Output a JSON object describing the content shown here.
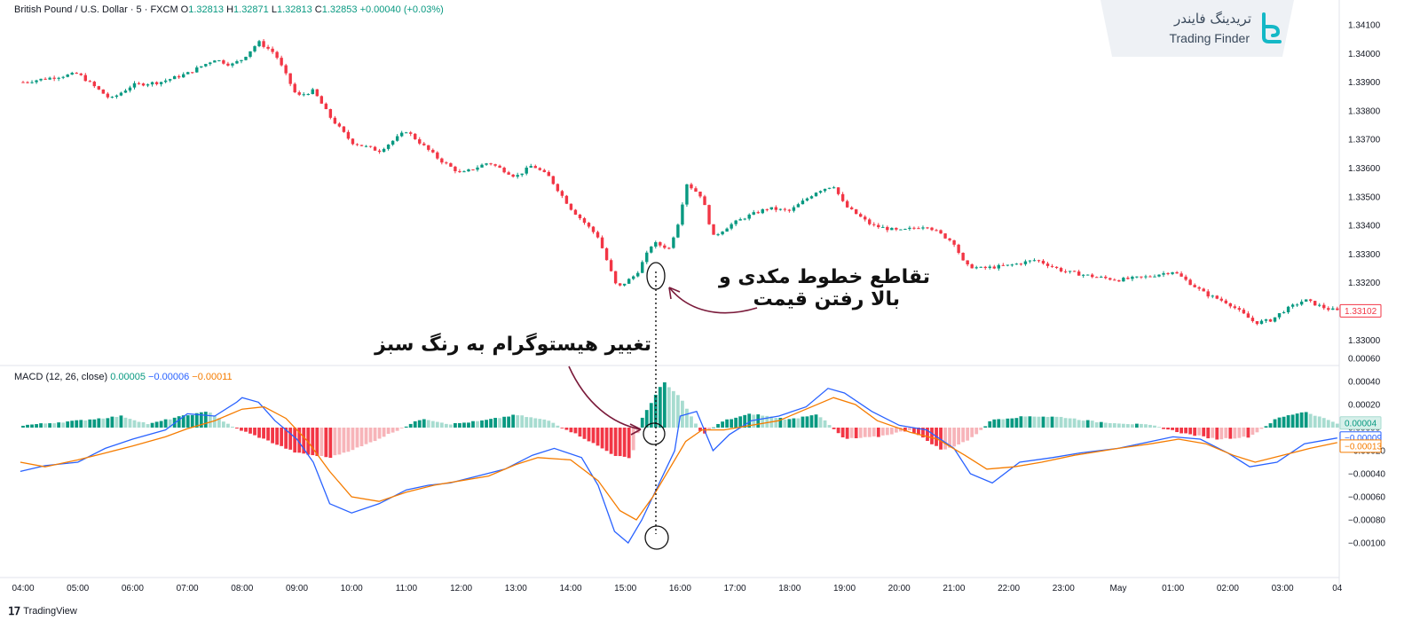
{
  "header": {
    "symbol": "British Pound / U.S. Dollar · 5 · FXCM",
    "ohlc": {
      "o": "1.32813",
      "h": "1.32871",
      "l": "1.32813",
      "c": "1.32853",
      "change": "+0.00040 (+0.03%)"
    }
  },
  "brand": {
    "name_fa": "تریدینگ فایندر",
    "name_en": "Trading Finder"
  },
  "macd_legend": {
    "label": "MACD (12, 26, close)",
    "hist": "0.00005",
    "macd": "−0.00006",
    "signal": "−0.00011"
  },
  "footer": {
    "logo": "TradingView"
  },
  "annotations": {
    "crossover": [
      "تقاطع خطوط مکدی و",
      "بالا رفتن قیمت"
    ],
    "histogram": "تغییر هیستوگرام به رنگ سبز"
  },
  "colors": {
    "up": "#089981",
    "down": "#f23645",
    "up_light": "#a7dcd0",
    "down_light": "#f7b4b9",
    "macd": "#2962ff",
    "signal": "#f57c00"
  },
  "chart_data": {
    "type": "candlestick",
    "x_labels": [
      "04:00",
      "05:00",
      "06:00",
      "07:00",
      "08:00",
      "09:00",
      "10:00",
      "11:00",
      "12:00",
      "13:00",
      "14:00",
      "15:00",
      "16:00",
      "17:00",
      "18:00",
      "19:00",
      "20:00",
      "21:00",
      "22:00",
      "23:00",
      "May",
      "01:00",
      "02:00",
      "03:00",
      "04"
    ],
    "price_axis": {
      "ticks": [
        "1.34100",
        "1.34000",
        "1.33900",
        "1.33800",
        "1.33700",
        "1.33600",
        "1.33500",
        "1.33400",
        "1.33300",
        "1.33200",
        "1.33100",
        "1.33000"
      ],
      "last_price": "1.33102",
      "ylim": [
        1.3296,
        1.3415
      ]
    },
    "macd_axis": {
      "ticks": [
        "0.00060",
        "0.00040",
        "0.00020",
        "0.00000",
        "-0.00020",
        "-0.00040",
        "-0.00060",
        "-0.00080",
        "-0.00100"
      ],
      "labels": {
        "hist": "0.00004",
        "macd": "−0.00009",
        "signal": "−0.00013"
      }
    },
    "price_path": [
      [
        0,
        1.339
      ],
      [
        1,
        1.3393
      ],
      [
        1.6,
        1.3384
      ],
      [
        2,
        1.3389
      ],
      [
        2.5,
        1.339
      ],
      [
        3,
        1.3393
      ],
      [
        3.5,
        1.3398
      ],
      [
        3.8,
        1.3396
      ],
      [
        4,
        1.3398
      ],
      [
        4.3,
        1.3404
      ],
      [
        4.6,
        1.34
      ],
      [
        5,
        1.3385
      ],
      [
        5.3,
        1.3387
      ],
      [
        5.6,
        1.3378
      ],
      [
        6,
        1.3369
      ],
      [
        6.5,
        1.3366
      ],
      [
        7,
        1.3373
      ],
      [
        7.3,
        1.3368
      ],
      [
        7.6,
        1.3363
      ],
      [
        8,
        1.3358
      ],
      [
        8.5,
        1.3362
      ],
      [
        9,
        1.3357
      ],
      [
        9.3,
        1.3361
      ],
      [
        9.6,
        1.3357
      ],
      [
        10,
        1.3346
      ],
      [
        10.5,
        1.3336
      ],
      [
        10.85,
        1.3318
      ],
      [
        11.2,
        1.3323
      ],
      [
        11.5,
        1.3334
      ],
      [
        11.8,
        1.3332
      ],
      [
        12,
        1.3343
      ],
      [
        12.1,
        1.3355
      ],
      [
        12.4,
        1.335
      ],
      [
        12.6,
        1.3336
      ],
      [
        12.9,
        1.334
      ],
      [
        13.2,
        1.3343
      ],
      [
        13.6,
        1.3346
      ],
      [
        14,
        1.3345
      ],
      [
        14.5,
        1.3352
      ],
      [
        14.8,
        1.3354
      ],
      [
        15,
        1.3347
      ],
      [
        15.5,
        1.334
      ],
      [
        16,
        1.3338
      ],
      [
        16.5,
        1.334
      ],
      [
        17,
        1.3334
      ],
      [
        17.2,
        1.3326
      ],
      [
        17.5,
        1.3325
      ],
      [
        18,
        1.3326
      ],
      [
        18.5,
        1.3328
      ],
      [
        19,
        1.3324
      ],
      [
        19.6,
        1.3322
      ],
      [
        20,
        1.3321
      ],
      [
        20.5,
        1.3322
      ],
      [
        21,
        1.3324
      ],
      [
        21.3,
        1.332
      ],
      [
        21.6,
        1.3316
      ],
      [
        22,
        1.3313
      ],
      [
        22.5,
        1.3306
      ],
      [
        22.8,
        1.3307
      ],
      [
        23,
        1.331
      ],
      [
        23.4,
        1.3314
      ],
      [
        23.8,
        1.3311
      ],
      [
        24,
        1.33102
      ]
    ],
    "histogram_path": [
      [
        0,
        2e-05
      ],
      [
        1,
        6e-05
      ],
      [
        1.8,
        0.0001
      ],
      [
        2.3,
        3e-05
      ],
      [
        2.8,
        9e-05
      ],
      [
        3.4,
        0.00014
      ],
      [
        3.8,
        1e-05
      ],
      [
        4.4,
        -0.0001
      ],
      [
        5,
        -0.00022
      ],
      [
        5.6,
        -0.00026
      ],
      [
        6.2,
        -0.00016
      ],
      [
        6.8,
        -3e-05
      ],
      [
        7.3,
        8e-05
      ],
      [
        7.8,
        3e-05
      ],
      [
        8.4,
        6e-05
      ],
      [
        9,
        0.00011
      ],
      [
        9.6,
        6e-05
      ],
      [
        10.2,
        -8e-05
      ],
      [
        10.8,
        -0.00024
      ],
      [
        11.1,
        -0.00027
      ],
      [
        11.3,
        8e-05
      ],
      [
        11.7,
        0.0004
      ],
      [
        12,
        0.00026
      ],
      [
        12.4,
        -6e-05
      ],
      [
        12.8,
        6e-05
      ],
      [
        13.3,
        0.00012
      ],
      [
        14,
        7e-05
      ],
      [
        14.5,
        0.00012
      ],
      [
        15,
        -0.0001
      ],
      [
        15.6,
        -8e-05
      ],
      [
        16.2,
        -2e-05
      ],
      [
        16.8,
        -0.0002
      ],
      [
        17.3,
        -0.0001
      ],
      [
        17.7,
        7e-05
      ],
      [
        18.4,
        0.0001
      ],
      [
        19,
        9e-05
      ],
      [
        19.6,
        5e-05
      ],
      [
        20,
        4e-05
      ],
      [
        20.6,
        2e-05
      ],
      [
        21.2,
        -5e-05
      ],
      [
        21.8,
        -0.0001
      ],
      [
        22.4,
        -8e-05
      ],
      [
        22.9,
        8e-05
      ],
      [
        23.4,
        0.00014
      ],
      [
        24,
        4e-05
      ]
    ],
    "macd_path": [
      [
        -0.05,
        -0.00038
      ],
      [
        0.4,
        -0.00033
      ],
      [
        1,
        -0.0003
      ],
      [
        1.5,
        -0.00018
      ],
      [
        2,
        -0.0001
      ],
      [
        2.6,
        -2e-05
      ],
      [
        3,
        0.00012
      ],
      [
        3.5,
        0.0001
      ],
      [
        3.9,
        0.00022
      ],
      [
        4,
        0.00026
      ],
      [
        4.3,
        0.00022
      ],
      [
        4.6,
        6e-05
      ],
      [
        5,
        -0.0001
      ],
      [
        5.3,
        -0.0003
      ],
      [
        5.6,
        -0.00066
      ],
      [
        6,
        -0.00074
      ],
      [
        6.5,
        -0.00066
      ],
      [
        7,
        -0.00054
      ],
      [
        7.4,
        -0.0005
      ],
      [
        7.8,
        -0.00048
      ],
      [
        8.3,
        -0.00042
      ],
      [
        8.8,
        -0.00036
      ],
      [
        9.3,
        -0.00024
      ],
      [
        9.7,
        -0.00018
      ],
      [
        10.2,
        -0.00026
      ],
      [
        10.5,
        -0.0005
      ],
      [
        10.8,
        -0.0009
      ],
      [
        11.05,
        -0.001
      ],
      [
        11.3,
        -0.0008
      ],
      [
        11.6,
        -0.0005
      ],
      [
        11.9,
        -0.0002
      ],
      [
        12,
        0.0001
      ],
      [
        12.3,
        0.00014
      ],
      [
        12.6,
        -0.0002
      ],
      [
        12.9,
        -6e-05
      ],
      [
        13.3,
        6e-05
      ],
      [
        13.8,
        0.0001
      ],
      [
        14.3,
        0.00018
      ],
      [
        14.7,
        0.00034
      ],
      [
        15,
        0.0003
      ],
      [
        15.5,
        0.00014
      ],
      [
        16,
        2e-05
      ],
      [
        16.5,
        -2e-05
      ],
      [
        17,
        -0.00018
      ],
      [
        17.3,
        -0.0004
      ],
      [
        17.7,
        -0.00048
      ],
      [
        18.2,
        -0.0003
      ],
      [
        18.8,
        -0.00026
      ],
      [
        19.3,
        -0.00022
      ],
      [
        20,
        -0.00018
      ],
      [
        20.6,
        -0.00012
      ],
      [
        21,
        -8e-05
      ],
      [
        21.5,
        -0.0001
      ],
      [
        22,
        -0.00022
      ],
      [
        22.4,
        -0.00034
      ],
      [
        22.9,
        -0.0003
      ],
      [
        23.4,
        -0.00014
      ],
      [
        24,
        -9e-05
      ]
    ],
    "signal_path": [
      [
        -0.05,
        -0.0003
      ],
      [
        0.4,
        -0.00034
      ],
      [
        1,
        -0.00028
      ],
      [
        1.5,
        -0.00022
      ],
      [
        2,
        -0.00016
      ],
      [
        2.6,
        -8e-05
      ],
      [
        3,
        -1e-05
      ],
      [
        3.5,
        6e-05
      ],
      [
        4,
        0.00016
      ],
      [
        4.4,
        0.00018
      ],
      [
        4.8,
        8e-05
      ],
      [
        5.2,
        -0.00012
      ],
      [
        5.6,
        -0.00038
      ],
      [
        6,
        -0.0006
      ],
      [
        6.5,
        -0.00064
      ],
      [
        7,
        -0.00056
      ],
      [
        7.5,
        -0.0005
      ],
      [
        8,
        -0.00046
      ],
      [
        8.5,
        -0.00042
      ],
      [
        9,
        -0.00032
      ],
      [
        9.4,
        -0.00026
      ],
      [
        10,
        -0.00028
      ],
      [
        10.5,
        -0.00046
      ],
      [
        10.9,
        -0.00072
      ],
      [
        11.2,
        -0.0008
      ],
      [
        11.5,
        -0.0006
      ],
      [
        11.8,
        -0.00036
      ],
      [
        12.1,
        -0.00012
      ],
      [
        12.4,
        -2e-05
      ],
      [
        12.8,
        -2e-05
      ],
      [
        13.3,
        2e-05
      ],
      [
        13.8,
        6e-05
      ],
      [
        14.3,
        0.00016
      ],
      [
        14.8,
        0.00026
      ],
      [
        15.2,
        0.0002
      ],
      [
        15.6,
        6e-05
      ],
      [
        16.2,
        -4e-05
      ],
      [
        16.7,
        -0.0001
      ],
      [
        17.2,
        -0.00024
      ],
      [
        17.6,
        -0.00036
      ],
      [
        18.1,
        -0.00034
      ],
      [
        18.6,
        -0.0003
      ],
      [
        19.2,
        -0.00024
      ],
      [
        20,
        -0.00018
      ],
      [
        20.6,
        -0.00014
      ],
      [
        21.1,
        -0.0001
      ],
      [
        21.6,
        -0.00014
      ],
      [
        22.1,
        -0.00024
      ],
      [
        22.5,
        -0.0003
      ],
      [
        23,
        -0.00024
      ],
      [
        23.5,
        -0.00018
      ],
      [
        24,
        -0.00013
      ]
    ]
  }
}
